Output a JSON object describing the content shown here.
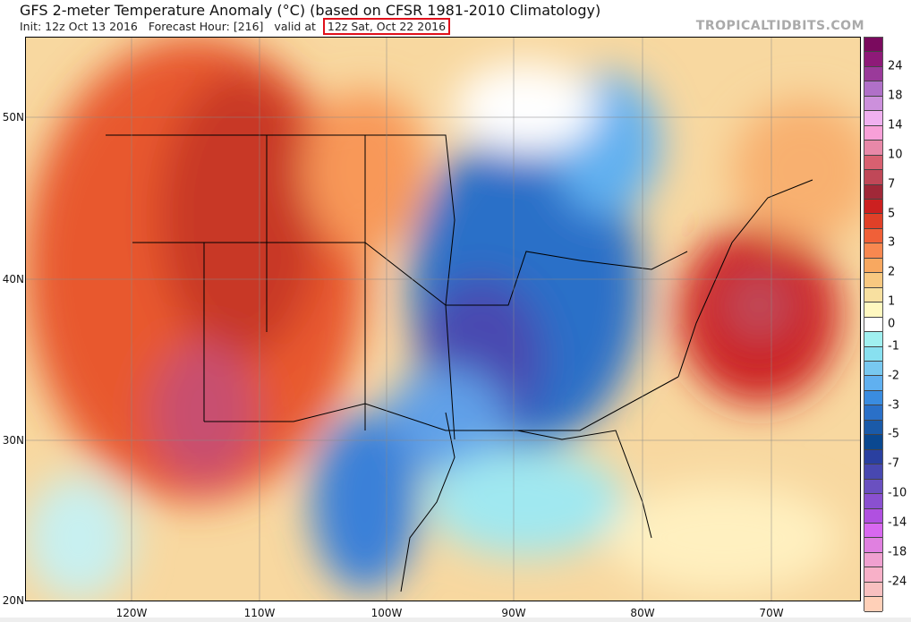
{
  "header": {
    "title": "GFS 2-meter Temperature Anomaly (°C) (based on CFSR 1981-2010 Climatology)",
    "init": "Init: 12z Oct 13 2016",
    "forecast_hour": "Forecast Hour: [216]",
    "valid_prefix": "valid at",
    "valid_time": "12z Sat, Oct 22 2016",
    "highlight_color": "#e0101a",
    "brand": "TROPICALTIDBITS.COM"
  },
  "axes": {
    "latitudes": [
      "50N",
      "40N",
      "30N",
      "20N"
    ],
    "longitudes": [
      "120W",
      "110W",
      "100W",
      "90W",
      "80W",
      "70W"
    ]
  },
  "colorbar": {
    "labels": [
      "24",
      "18",
      "14",
      "10",
      "7",
      "5",
      "3",
      "2",
      "1",
      "0",
      "-1",
      "-2",
      "-3",
      "-5",
      "-7",
      "-10",
      "-14",
      "-18",
      "-24"
    ],
    "colors": [
      "#7a0a5e",
      "#8e1a78",
      "#9a3a9a",
      "#b070c8",
      "#cc90dc",
      "#f0b0f0",
      "#f8a0d8",
      "#e888a8",
      "#d86070",
      "#c04858",
      "#a02838",
      "#cc2020",
      "#e04028",
      "#f06038",
      "#f88850",
      "#f8a860",
      "#f8c880",
      "#f8e0a0",
      "#fff8c0",
      "#ffffff",
      "#a0f0f0",
      "#88e0f0",
      "#78c8f0",
      "#60b0f0",
      "#3a8ce0",
      "#2a70c8",
      "#1a5aa8",
      "#0a4890",
      "#2a40a0",
      "#4848b0",
      "#6a50c0",
      "#8a50d0",
      "#b050e0",
      "#d868f0",
      "#e080e0",
      "#f0a0d0",
      "#f8b0c8",
      "#f8c0c0",
      "#ffd0b8"
    ]
  }
}
